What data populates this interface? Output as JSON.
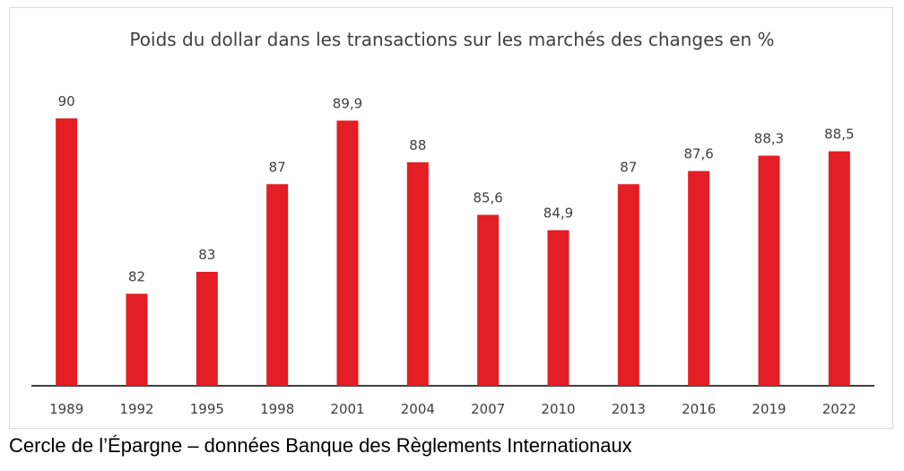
{
  "chart_data": {
    "type": "bar",
    "title": "Poids du dollar dans les transactions sur les marchés des changes en %",
    "categories": [
      "1989",
      "1992",
      "1995",
      "1998",
      "2001",
      "2004",
      "2007",
      "2010",
      "2013",
      "2016",
      "2019",
      "2022"
    ],
    "values": [
      90,
      82,
      83,
      87,
      89.9,
      88,
      85.6,
      84.9,
      87,
      87.6,
      88.3,
      88.5
    ],
    "value_labels": [
      "90",
      "82",
      "83",
      "87",
      "89,9",
      "88",
      "85,6",
      "84,9",
      "87",
      "87,6",
      "88,3",
      "88,5"
    ],
    "ylim": [
      77.8,
      90
    ],
    "grid": false,
    "legend": "none",
    "bar_color": "#e31e24",
    "axis_color": "#000000"
  },
  "source": "Cercle de l’Épargne – données Banque des Règlements Internationaux"
}
